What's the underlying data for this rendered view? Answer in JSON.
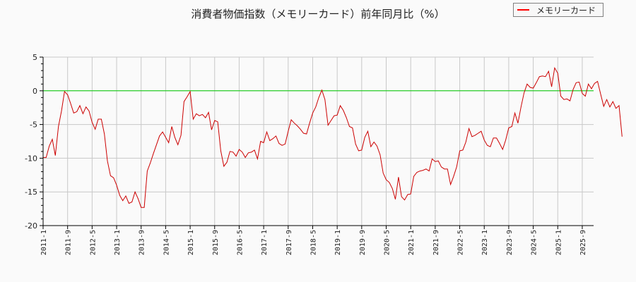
{
  "title": "消費者物価指数（メモリーカード）前年同月比（%）",
  "legend": {
    "label": "メモリーカード",
    "color": "#ff0000"
  },
  "colors": {
    "line": "#cc0000",
    "zero_line": "#00cc00",
    "grid": "#c8c8c8",
    "axis": "#000000",
    "background": "#fafafa"
  },
  "chart_data": {
    "type": "line",
    "title": "消費者物価指数（メモリーカード）前年同月比（%）",
    "xlabel": "",
    "ylabel": "",
    "ylim": [
      -20,
      5
    ],
    "yticks": [
      5,
      0,
      -5,
      -10,
      -15,
      -20
    ],
    "xticks": [
      "2011-1",
      "2011-9",
      "2012-5",
      "2013-1",
      "2013-9",
      "2014-5",
      "2015-1",
      "2015-9",
      "2016-5",
      "2017-1",
      "2017-9",
      "2018-5",
      "2019-1",
      "2019-9",
      "2020-5",
      "2021-1",
      "2021-9",
      "2022-5",
      "2023-1",
      "2023-9",
      "2024-5",
      "2025-1",
      "2025-9"
    ],
    "grid": true,
    "legend_position": "top-right",
    "reference_line": {
      "y": 0,
      "color": "#00cc00"
    },
    "x_start": "2011-1",
    "x_frequency": "monthly",
    "series": [
      {
        "name": "メモリーカード",
        "values": [
          -9.9,
          -9.9,
          -8.2,
          -7.2,
          -9.6,
          -5.3,
          -3.0,
          -0.1,
          -0.6,
          -1.9,
          -3.3,
          -3.1,
          -2.2,
          -3.4,
          -2.4,
          -3.0,
          -4.7,
          -5.7,
          -4.2,
          -4.2,
          -6.4,
          -10.4,
          -12.6,
          -12.9,
          -14.0,
          -15.5,
          -16.3,
          -15.6,
          -16.7,
          -16.5,
          -15.0,
          -16.0,
          -17.3,
          -17.3,
          -11.9,
          -10.7,
          -9.3,
          -8.0,
          -6.7,
          -6.1,
          -6.9,
          -7.7,
          -5.3,
          -6.9,
          -8.0,
          -6.6,
          -1.6,
          -0.9,
          -0.1,
          -4.2,
          -3.4,
          -3.7,
          -3.5,
          -4.0,
          -3.2,
          -5.8,
          -4.4,
          -4.6,
          -8.9,
          -11.2,
          -10.6,
          -9.0,
          -9.1,
          -9.7,
          -8.7,
          -9.1,
          -9.9,
          -9.2,
          -9.1,
          -8.8,
          -10.1,
          -7.5,
          -7.7,
          -6.1,
          -7.4,
          -7.1,
          -6.7,
          -7.8,
          -8.1,
          -7.9,
          -6.0,
          -4.3,
          -4.8,
          -5.2,
          -5.7,
          -6.3,
          -6.4,
          -4.8,
          -3.3,
          -2.4,
          -1.0,
          0.1,
          -1.3,
          -5.1,
          -4.4,
          -3.7,
          -3.6,
          -2.2,
          -2.9,
          -4.0,
          -5.3,
          -5.5,
          -7.9,
          -8.9,
          -8.8,
          -6.9,
          -6.0,
          -8.3,
          -7.6,
          -8.2,
          -9.5,
          -12.2,
          -13.2,
          -13.6,
          -14.5,
          -16.1,
          -12.8,
          -15.7,
          -16.2,
          -15.4,
          -15.3,
          -12.7,
          -12.1,
          -11.9,
          -11.8,
          -11.6,
          -11.9,
          -10.1,
          -10.5,
          -10.4,
          -11.3,
          -11.6,
          -11.6,
          -13.9,
          -12.7,
          -11.3,
          -8.9,
          -8.8,
          -7.6,
          -5.6,
          -6.8,
          -6.6,
          -6.3,
          -6.0,
          -7.3,
          -8.1,
          -8.3,
          -7.0,
          -7.0,
          -7.8,
          -8.7,
          -7.3,
          -5.5,
          -5.3,
          -3.3,
          -4.8,
          -2.4,
          -0.3,
          1.0,
          0.5,
          0.4,
          1.2,
          2.1,
          2.2,
          2.1,
          2.9,
          0.6,
          3.4,
          2.6,
          -0.8,
          -1.3,
          -1.2,
          -1.5,
          0.2,
          1.2,
          1.3,
          -0.4,
          -0.8,
          1.0,
          0.3,
          1.1,
          1.4,
          -0.5,
          -2.3,
          -1.3,
          -2.4,
          -1.6,
          -2.6,
          -2.2,
          -6.8
        ]
      }
    ]
  }
}
